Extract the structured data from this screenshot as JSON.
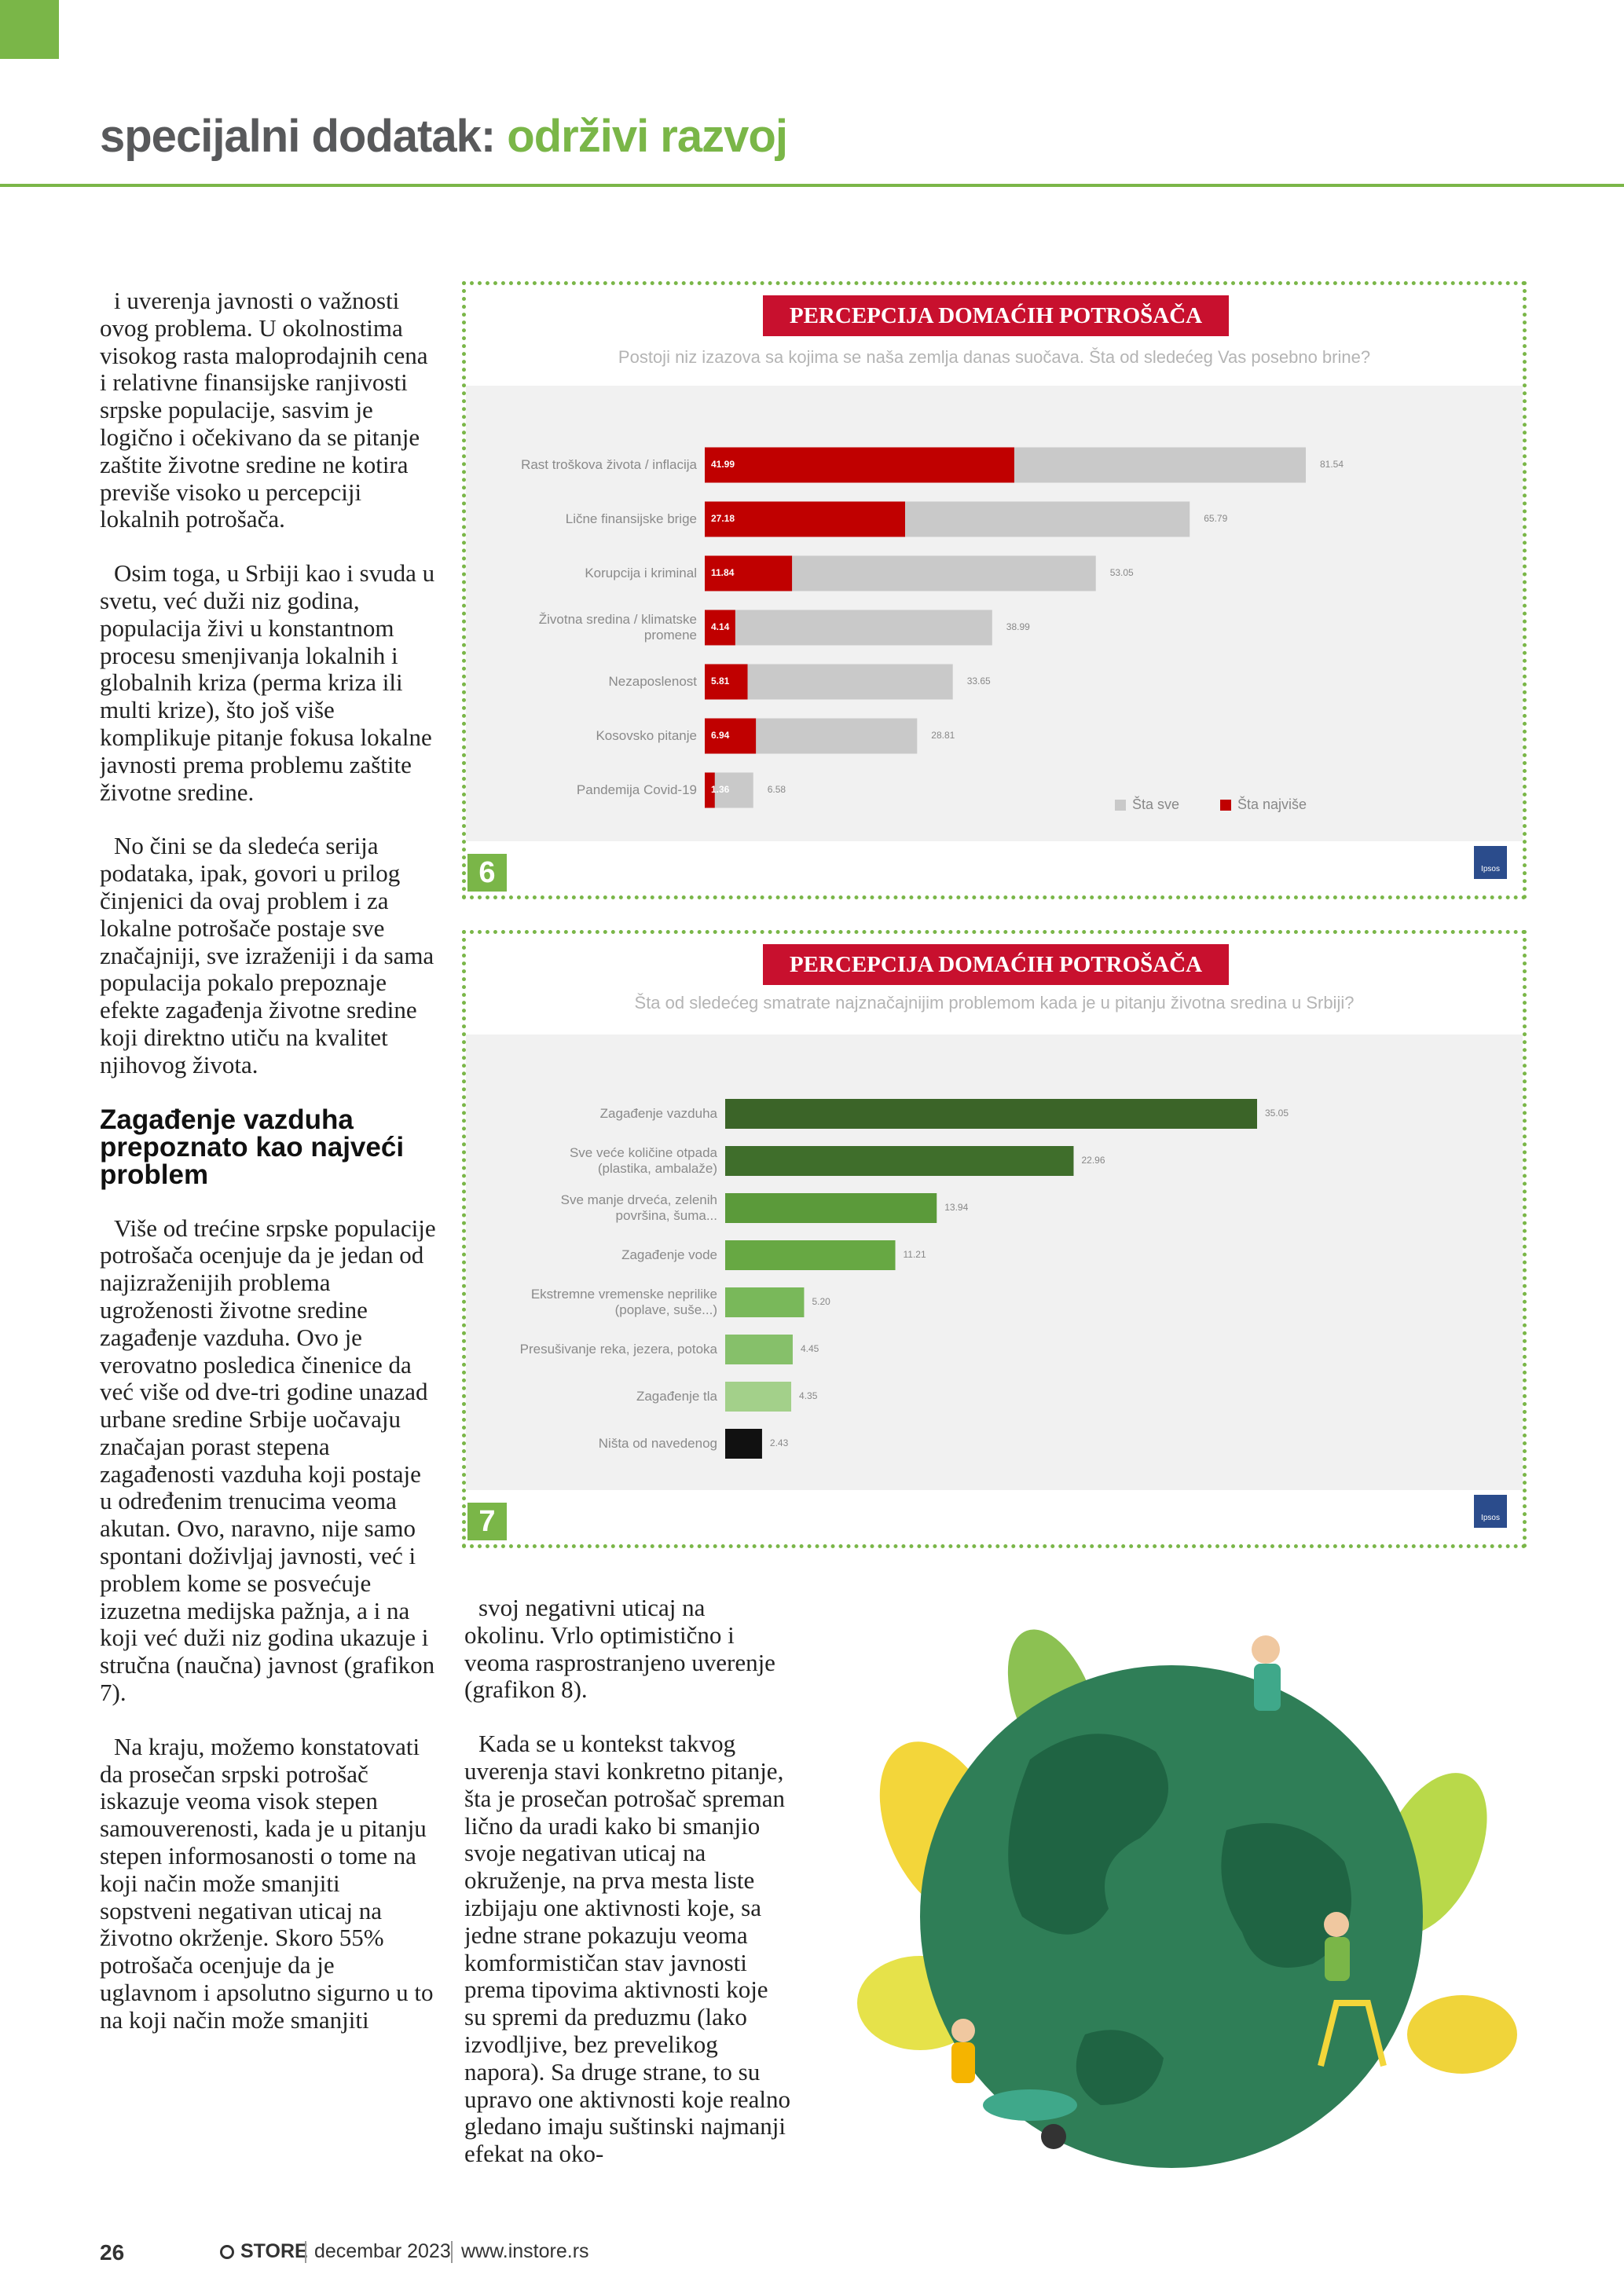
{
  "header": {
    "section": "specijalni dodatak:",
    "topic": "održivi razvoj"
  },
  "columns": {
    "left": {
      "paragraphs_before": [
        "i uverenja javnosti o važnosti ovog problema. U okolnostima visokog rasta maloprodajnih cena i relativne finansijske ranjivosti srpske populacije, sasvim je logično i očekivano da se pitanje zaštite životne sredine ne kotira previše visoko u percepciji lokalnih potrošača.",
        "Osim toga, u Srbiji kao i svuda u svetu, već duži niz godina, populacija živi u konstantnom procesu smenjivanja lokalnih i globalnih kriza (perma kriza ili multi krize), što još više komplikuje pitanje fokusa lokalne javnosti prema problemu zaštite životne sredine.",
        "No čini se da sledeća serija podataka, ipak, govori u prilog činjenici da ovaj problem i za lokalne potrošače postaje sve značajniji, sve izraženiji i da sama populacija pokalo prepoznaje efekte zagađenja životne sredine koji direktno utiču na kvalitet njihovog života."
      ],
      "heading": "Zagađenje vazduha prepoznato kao najveći problem",
      "paragraphs_after": [
        "Više od trećine srpske populacije potrošača ocenjuje da je jedan od najizraženijih problema ugroženosti životne sredine zagađenje vazduha. Ovo je verovatno posledica činenice da već više od dve-tri godine unazad urbane sredine Srbije uočavaju značajan porast stepena zagađenosti vazduha koji postaje u određenim trenucima veoma akutan. Ovo, naravno, nije samo spontani doživljaj javnosti, već i problem kome se posvećuje izuzetna medijska pažnja, a i na koji već duži niz godina ukazuje i stručna (naučna) javnost (grafikon 7).",
        "Na kraju, možemo konstatovati da prosečan srpski potrošač iskazuje veoma visok stepen samouverenosti, kada je u pitanju stepen informosanosti o tome na koji način može smanjiti sopstveni negativan uticaj na životno okrženje. Skoro 55% potrošača ocenjuje da je uglavnom i apsolutno sigurno u to na koji način može smanjiti"
      ]
    },
    "middle": {
      "paragraphs": [
        "svoj negativni uticaj na okolinu. Vrlo optimistično i veoma rasprostranjeno uverenje (grafikon 8).",
        "Kada se u kontekst takvog uverenja stavi konkretno pitanje, šta je prosečan potrošač spreman lično da uradi kako bi smanjio svoje negativan uticaj na okruženje, na prva mesta liste izbijaju one aktivnosti koje, sa jedne strane pokazuju veoma komformističan stav javnosti prema tipovima aktivnosti koje su spremi da preduzmu (lako izvodljive, bez prevelikog napora). Sa druge strane, to su upravo one aktivnosti koje realno gledano imaju suštinski najmanji efekat na oko-"
      ]
    }
  },
  "chart_data": [
    {
      "type": "bar",
      "orientation": "horizontal",
      "figure_label": "6",
      "title": "PERCEPCIJA DOMAĆIH POTROŠAČA",
      "subtitle": "Postoji niz izazova sa kojima se naša zemlja danas suočava. Šta od sledećeg Vas posebno brine?",
      "categories": [
        "Rast troškova života / inflacija",
        "Lične finansijske brige",
        "Korupcija i kriminal",
        "Životna sredina / klimatske promene",
        "Nezaposlenost",
        "Kosovsko pitanje",
        "Pandemija Covid-19"
      ],
      "series": [
        {
          "name": "Šta sve",
          "color": "#c9c9c9",
          "values": [
            81.54,
            65.79,
            53.05,
            38.99,
            33.65,
            28.81,
            6.58
          ],
          "value_labels": [
            "81.54",
            "65.79",
            "53.05",
            "38.99",
            "33.65",
            "28.81",
            "6.58"
          ]
        },
        {
          "name": "Šta najviše",
          "color": "#c00000",
          "values": [
            41.99,
            27.18,
            11.84,
            4.14,
            5.81,
            6.94,
            1.36
          ],
          "value_labels": [
            "41.99",
            "27.18",
            "11.84",
            "4.14",
            "5.81",
            "6.94",
            "1.36"
          ]
        }
      ],
      "logo": "Ipsos"
    },
    {
      "type": "bar",
      "orientation": "horizontal",
      "figure_label": "7",
      "title": "PERCEPCIJA DOMAĆIH POTROŠAČA",
      "subtitle": "Šta od sledećeg smatrate najznačajnijim problemom kada je u pitanju životna sredina u Srbiji?",
      "categories": [
        "Zagađenje vazduha",
        "Sve veće količine otpada (plastika, ambalaže)",
        "Sve manje drveća, zelenih površina, šuma...",
        "Zagađenje vode",
        "Ekstremne vremenske neprilike (poplave, suše...)",
        "Presušivanje reka, jezera, potoka",
        "Zagađenje tla",
        "Ništa od navedenog"
      ],
      "values": [
        35.05,
        22.96,
        13.94,
        11.21,
        5.2,
        4.45,
        4.35,
        2.43
      ],
      "value_labels": [
        "35.05",
        "22.96",
        "13.94",
        "11.21",
        "5.20",
        "4.45",
        "4.35",
        "2.43"
      ],
      "colors": [
        "#3b6428",
        "#3f6e2b",
        "#5b9a3a",
        "#67a843",
        "#79b85a",
        "#86c06a",
        "#a3d08a",
        "#111111"
      ],
      "logo": "Ipsos"
    }
  ],
  "footer": {
    "page": "26",
    "brand": "STORE",
    "issue": "decembar 2023",
    "url": "www.instore.rs"
  }
}
